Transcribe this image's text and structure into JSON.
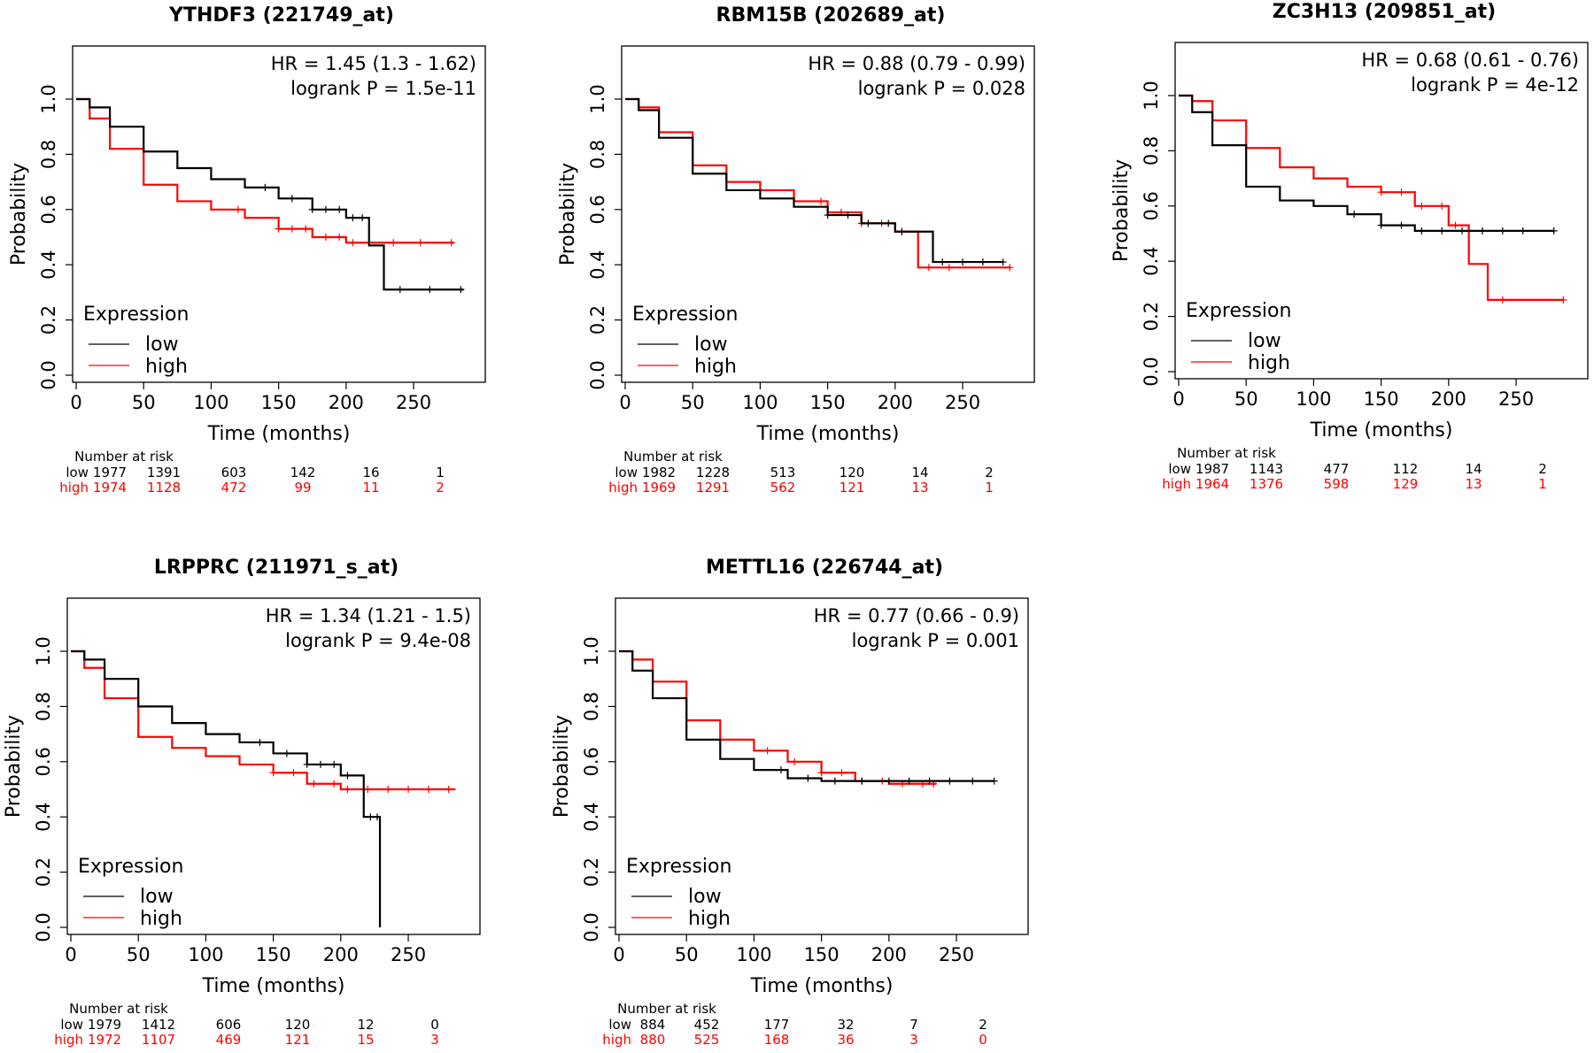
{
  "common": {
    "ylabel": "Probability",
    "xlabel": "Time (months)",
    "legend_title": "Expression",
    "legend_low": "low",
    "legend_high": "high",
    "risk_title": "Number at risk",
    "risk_low_label": "low",
    "risk_high_label": "high",
    "xticks": [
      0,
      50,
      100,
      150,
      200,
      250
    ],
    "yticks": [
      0.0,
      0.2,
      0.4,
      0.6,
      0.8,
      1.0
    ],
    "ytick_labels": [
      "0.0",
      "0.2",
      "0.4",
      "0.6",
      "0.8",
      "1.0"
    ],
    "xlim": [
      0,
      290
    ],
    "ylim": [
      0,
      1.0
    ],
    "colors": {
      "low": "#000000",
      "high": "#ff0000"
    },
    "legend_position": "bottom-left",
    "stats_position": "top-right"
  },
  "chart_data": [
    {
      "type": "line",
      "title": "YTHDF3 (221749_at)",
      "hr": "HR = 1.45 (1.3 - 1.62)",
      "logrank": "logrank P = 1.5e-11",
      "risk_low": [
        "1977",
        "1391",
        "603",
        "142",
        "16",
        "1"
      ],
      "risk_high": [
        "1974",
        "1128",
        "472",
        "99",
        "11",
        "2"
      ],
      "series": [
        {
          "name": "low",
          "x": [
            0,
            10,
            25,
            50,
            75,
            100,
            125,
            150,
            175,
            200,
            217,
            217,
            228,
            228,
            287
          ],
          "y": [
            1.0,
            0.97,
            0.9,
            0.81,
            0.75,
            0.71,
            0.68,
            0.64,
            0.6,
            0.57,
            0.57,
            0.47,
            0.47,
            0.31,
            0.31
          ],
          "censor_x": [
            140,
            160,
            175,
            185,
            195,
            205,
            212,
            240,
            262,
            285
          ]
        },
        {
          "name": "high",
          "x": [
            0,
            10,
            25,
            50,
            75,
            100,
            125,
            150,
            175,
            200,
            225,
            280
          ],
          "y": [
            1.0,
            0.93,
            0.82,
            0.69,
            0.63,
            0.6,
            0.57,
            0.53,
            0.5,
            0.48,
            0.48,
            0.48
          ],
          "censor_x": [
            120,
            150,
            160,
            170,
            185,
            195,
            205,
            235,
            255,
            278
          ]
        }
      ]
    },
    {
      "type": "line",
      "title": "RBM15B (202689_at)",
      "hr": "HR = 0.88 (0.79 - 0.99)",
      "logrank": "logrank P = 0.028",
      "risk_low": [
        "1982",
        "1228",
        "513",
        "120",
        "14",
        "2"
      ],
      "risk_high": [
        "1969",
        "1291",
        "562",
        "121",
        "13",
        "1"
      ],
      "series": [
        {
          "name": "low",
          "x": [
            0,
            10,
            25,
            50,
            75,
            100,
            125,
            150,
            175,
            200,
            218,
            218,
            228,
            228,
            280
          ],
          "y": [
            1.0,
            0.96,
            0.86,
            0.73,
            0.67,
            0.64,
            0.61,
            0.58,
            0.55,
            0.52,
            0.52,
            0.52,
            0.52,
            0.41,
            0.41
          ],
          "censor_x": [
            150,
            165,
            180,
            195,
            205,
            235,
            250,
            265,
            280
          ]
        },
        {
          "name": "high",
          "x": [
            0,
            10,
            25,
            50,
            75,
            100,
            125,
            150,
            175,
            200,
            217,
            217,
            285
          ],
          "y": [
            1.0,
            0.97,
            0.88,
            0.76,
            0.7,
            0.67,
            0.63,
            0.59,
            0.55,
            0.52,
            0.52,
            0.39,
            0.39
          ],
          "censor_x": [
            145,
            160,
            175,
            190,
            205,
            225,
            240,
            285
          ]
        }
      ]
    },
    {
      "type": "line",
      "title": "ZC3H13 (209851_at)",
      "hr": "HR = 0.68 (0.61 - 0.76)",
      "logrank": "logrank P = 4e-12",
      "risk_low": [
        "1987",
        "1143",
        "477",
        "112",
        "14",
        "2"
      ],
      "risk_high": [
        "1964",
        "1376",
        "598",
        "129",
        "13",
        "1"
      ],
      "series": [
        {
          "name": "low",
          "x": [
            0,
            10,
            25,
            50,
            75,
            100,
            125,
            150,
            175,
            200,
            225,
            278
          ],
          "y": [
            1.0,
            0.94,
            0.82,
            0.67,
            0.62,
            0.6,
            0.57,
            0.53,
            0.51,
            0.51,
            0.51,
            0.51
          ],
          "censor_x": [
            130,
            150,
            165,
            180,
            195,
            210,
            225,
            240,
            255,
            278
          ]
        },
        {
          "name": "high",
          "x": [
            0,
            10,
            25,
            50,
            75,
            100,
            125,
            150,
            175,
            200,
            215,
            215,
            229,
            229,
            285
          ],
          "y": [
            1.0,
            0.98,
            0.91,
            0.81,
            0.74,
            0.7,
            0.67,
            0.65,
            0.6,
            0.53,
            0.52,
            0.39,
            0.39,
            0.26,
            0.26
          ],
          "censor_x": [
            150,
            165,
            180,
            195,
            205,
            240,
            285
          ]
        }
      ]
    },
    {
      "type": "line",
      "title": "LRPPRC (211971_s_at)",
      "hr": "HR = 1.34 (1.21 - 1.5)",
      "logrank": "logrank P = 9.4e-08",
      "risk_low": [
        "1979",
        "1412",
        "606",
        "120",
        "12",
        "0"
      ],
      "risk_high": [
        "1972",
        "1107",
        "469",
        "121",
        "15",
        "3"
      ],
      "series": [
        {
          "name": "low",
          "x": [
            0,
            10,
            25,
            50,
            75,
            100,
            125,
            150,
            175,
            200,
            217,
            217,
            229,
            229
          ],
          "y": [
            1.0,
            0.97,
            0.9,
            0.8,
            0.74,
            0.7,
            0.67,
            0.63,
            0.59,
            0.55,
            0.55,
            0.4,
            0.4,
            0.0
          ],
          "censor_x": [
            140,
            160,
            175,
            185,
            195,
            205,
            222,
            227
          ]
        },
        {
          "name": "high",
          "x": [
            0,
            10,
            25,
            50,
            75,
            100,
            125,
            150,
            175,
            200,
            225,
            285
          ],
          "y": [
            1.0,
            0.94,
            0.83,
            0.69,
            0.65,
            0.62,
            0.59,
            0.56,
            0.52,
            0.5,
            0.5,
            0.5
          ],
          "censor_x": [
            150,
            165,
            180,
            195,
            205,
            220,
            235,
            250,
            265,
            280
          ]
        }
      ]
    },
    {
      "type": "line",
      "title": "METTL16 (226744_at)",
      "hr": "HR = 0.77 (0.66 - 0.9)",
      "logrank": "logrank P = 0.001",
      "risk_low": [
        "884",
        "452",
        "177",
        "32",
        "7",
        "2"
      ],
      "risk_high": [
        "880",
        "525",
        "168",
        "36",
        "3",
        "0"
      ],
      "series": [
        {
          "name": "low",
          "x": [
            0,
            10,
            25,
            50,
            75,
            100,
            125,
            150,
            175,
            200,
            250,
            278
          ],
          "y": [
            1.0,
            0.93,
            0.83,
            0.68,
            0.61,
            0.57,
            0.54,
            0.53,
            0.53,
            0.53,
            0.53,
            0.53
          ],
          "censor_x": [
            120,
            140,
            160,
            180,
            200,
            215,
            230,
            245,
            262,
            278
          ]
        },
        {
          "name": "high",
          "x": [
            0,
            10,
            25,
            50,
            75,
            100,
            125,
            150,
            175,
            200,
            225,
            235
          ],
          "y": [
            1.0,
            0.97,
            0.89,
            0.75,
            0.68,
            0.64,
            0.6,
            0.56,
            0.53,
            0.52,
            0.52,
            0.52
          ],
          "censor_x": [
            110,
            130,
            150,
            165,
            180,
            195,
            210,
            225,
            233
          ]
        }
      ]
    }
  ]
}
